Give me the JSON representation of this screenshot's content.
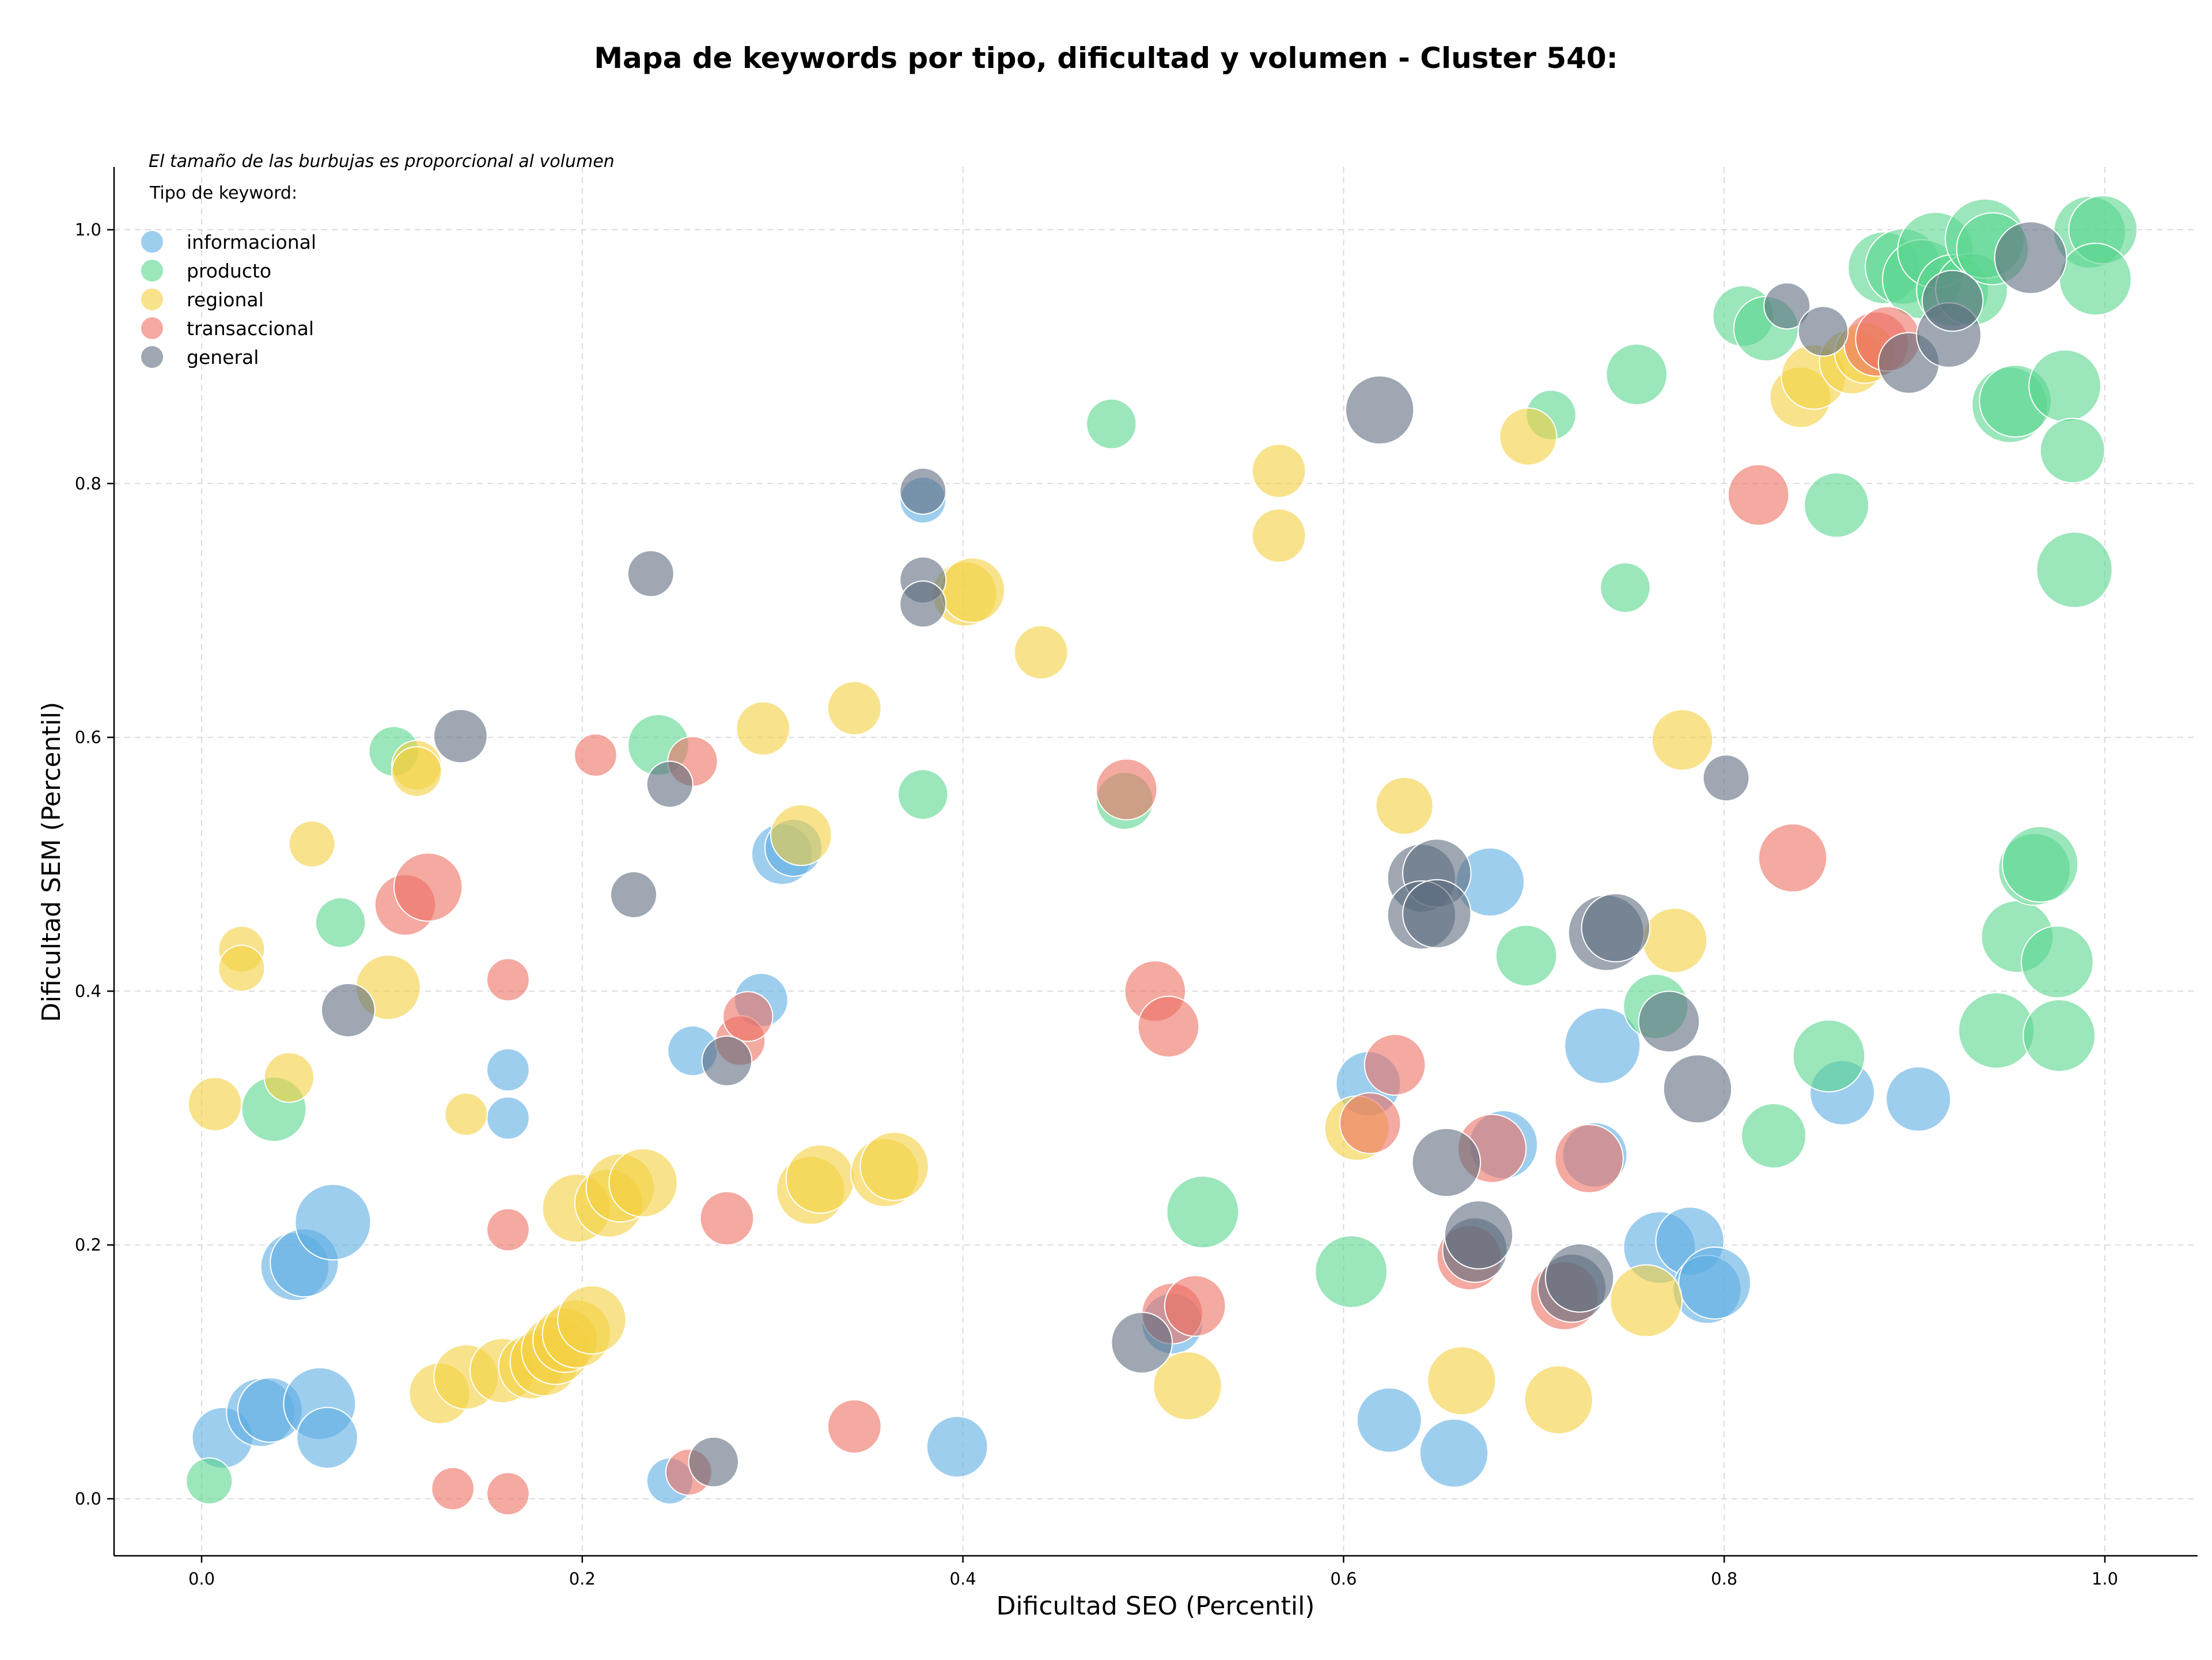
{
  "chart_data": {
    "type": "scatter",
    "title": "Mapa de keywords por tipo, dificultad y volumen - Cluster 540:",
    "xlabel": "Dificultad SEO (Percentil)",
    "ylabel": "Dificultad SEM (Percentil)",
    "xlim": [
      -0.045,
      1.05
    ],
    "ylim": [
      -0.045,
      1.05
    ],
    "x_ticks": [
      "0.0",
      "0.2",
      "0.4",
      "0.6",
      "0.8",
      "1.0"
    ],
    "y_ticks": [
      "0.0",
      "0.2",
      "0.4",
      "0.6",
      "0.8",
      "1.0"
    ],
    "grid": true,
    "note": "El tamaño de las burbujas es proporcional al volumen",
    "legend_title": "Tipo de keyword:",
    "legend_position": "top-left",
    "series": [
      {
        "name": "informacional",
        "color": "#5DADE2",
        "points": [
          [
            0.011,
            0.048,
            0.45
          ],
          [
            0.031,
            0.068,
            0.55
          ],
          [
            0.036,
            0.07,
            0.5
          ],
          [
            0.062,
            0.075,
            0.6
          ],
          [
            0.066,
            0.048,
            0.45
          ],
          [
            0.049,
            0.183,
            0.55
          ],
          [
            0.054,
            0.186,
            0.55
          ],
          [
            0.069,
            0.218,
            0.65
          ],
          [
            0.161,
            0.338,
            0.2
          ],
          [
            0.161,
            0.3,
            0.2
          ],
          [
            0.246,
            0.014,
            0.25
          ],
          [
            0.258,
            0.353,
            0.3
          ],
          [
            0.294,
            0.393,
            0.35
          ],
          [
            0.305,
            0.508,
            0.45
          ],
          [
            0.311,
            0.513,
            0.4
          ],
          [
            0.379,
            0.787,
            0.25
          ],
          [
            0.397,
            0.041,
            0.45
          ],
          [
            0.613,
            0.327,
            0.5
          ],
          [
            0.624,
            0.062,
            0.5
          ],
          [
            0.658,
            0.036,
            0.55
          ],
          [
            0.677,
            0.486,
            0.55
          ],
          [
            0.684,
            0.279,
            0.55
          ],
          [
            0.732,
            0.271,
            0.5
          ],
          [
            0.736,
            0.357,
            0.65
          ],
          [
            0.766,
            0.198,
            0.6
          ],
          [
            0.782,
            0.203,
            0.55
          ],
          [
            0.791,
            0.165,
            0.55
          ],
          [
            0.795,
            0.17,
            0.6
          ],
          [
            0.862,
            0.32,
            0.5
          ],
          [
            0.902,
            0.315,
            0.5
          ],
          [
            0.51,
            0.138,
            0.45
          ]
        ]
      },
      {
        "name": "producto",
        "color": "#58D68D",
        "points": [
          [
            0.004,
            0.014,
            0.25
          ],
          [
            0.038,
            0.307,
            0.5
          ],
          [
            0.073,
            0.454,
            0.3
          ],
          [
            0.101,
            0.589,
            0.3
          ],
          [
            0.24,
            0.594,
            0.45
          ],
          [
            0.379,
            0.555,
            0.3
          ],
          [
            0.478,
            0.847,
            0.3
          ],
          [
            0.485,
            0.55,
            0.4
          ],
          [
            0.526,
            0.226,
            0.6
          ],
          [
            0.604,
            0.179,
            0.6
          ],
          [
            0.696,
            0.428,
            0.45
          ],
          [
            0.709,
            0.854,
            0.3
          ],
          [
            0.748,
            0.718,
            0.3
          ],
          [
            0.754,
            0.886,
            0.45
          ],
          [
            0.764,
            0.388,
            0.5
          ],
          [
            0.81,
            0.932,
            0.45
          ],
          [
            0.822,
            0.922,
            0.5
          ],
          [
            0.826,
            0.286,
            0.5
          ],
          [
            0.855,
            0.349,
            0.6
          ],
          [
            0.859,
            0.783,
            0.5
          ],
          [
            0.884,
            0.97,
            0.6
          ],
          [
            0.894,
            0.971,
            0.65
          ],
          [
            0.904,
            0.961,
            0.7
          ],
          [
            0.911,
            0.984,
            0.65
          ],
          [
            0.92,
            0.952,
            0.6
          ],
          [
            0.93,
            0.953,
            0.6
          ],
          [
            0.937,
            0.993,
            0.7
          ],
          [
            0.941,
            0.985,
            0.6
          ],
          [
            0.943,
            0.369,
            0.65
          ],
          [
            0.95,
            0.862,
            0.65
          ],
          [
            0.953,
            0.865,
            0.6
          ],
          [
            0.954,
            0.443,
            0.6
          ],
          [
            0.963,
            0.496,
            0.6
          ],
          [
            0.966,
            0.5,
            0.65
          ],
          [
            0.975,
            0.423,
            0.6
          ],
          [
            0.976,
            0.365,
            0.6
          ],
          [
            0.979,
            0.877,
            0.6
          ],
          [
            0.983,
            0.826,
            0.5
          ],
          [
            0.984,
            0.732,
            0.65
          ],
          [
            0.992,
            0.998,
            0.6
          ],
          [
            0.999,
            1.0,
            0.55
          ],
          [
            0.995,
            0.961,
            0.6
          ]
        ]
      },
      {
        "name": "regional",
        "color": "#F4D03F",
        "points": [
          [
            0.007,
            0.311,
            0.35
          ],
          [
            0.021,
            0.433,
            0.25
          ],
          [
            0.021,
            0.418,
            0.25
          ],
          [
            0.046,
            0.332,
            0.3
          ],
          [
            0.058,
            0.516,
            0.25
          ],
          [
            0.098,
            0.403,
            0.5
          ],
          [
            0.113,
            0.578,
            0.3
          ],
          [
            0.113,
            0.573,
            0.3
          ],
          [
            0.125,
            0.083,
            0.45
          ],
          [
            0.139,
            0.096,
            0.5
          ],
          [
            0.139,
            0.303,
            0.2
          ],
          [
            0.158,
            0.101,
            0.5
          ],
          [
            0.173,
            0.104,
            0.5
          ],
          [
            0.18,
            0.108,
            0.55
          ],
          [
            0.186,
            0.117,
            0.55
          ],
          [
            0.191,
            0.125,
            0.5
          ],
          [
            0.197,
            0.13,
            0.55
          ],
          [
            0.205,
            0.141,
            0.55
          ],
          [
            0.197,
            0.229,
            0.55
          ],
          [
            0.214,
            0.233,
            0.55
          ],
          [
            0.22,
            0.245,
            0.55
          ],
          [
            0.232,
            0.249,
            0.55
          ],
          [
            0.295,
            0.607,
            0.35
          ],
          [
            0.315,
            0.523,
            0.45
          ],
          [
            0.32,
            0.243,
            0.55
          ],
          [
            0.325,
            0.252,
            0.55
          ],
          [
            0.343,
            0.623,
            0.35
          ],
          [
            0.359,
            0.257,
            0.55
          ],
          [
            0.364,
            0.262,
            0.55
          ],
          [
            0.401,
            0.713,
            0.5
          ],
          [
            0.405,
            0.716,
            0.5
          ],
          [
            0.441,
            0.667,
            0.35
          ],
          [
            0.518,
            0.089,
            0.55
          ],
          [
            0.566,
            0.81,
            0.35
          ],
          [
            0.566,
            0.759,
            0.35
          ],
          [
            0.607,
            0.292,
            0.5
          ],
          [
            0.632,
            0.546,
            0.4
          ],
          [
            0.662,
            0.093,
            0.55
          ],
          [
            0.697,
            0.837,
            0.4
          ],
          [
            0.713,
            0.078,
            0.55
          ],
          [
            0.759,
            0.156,
            0.6
          ],
          [
            0.774,
            0.44,
            0.5
          ],
          [
            0.778,
            0.598,
            0.45
          ],
          [
            0.84,
            0.868,
            0.45
          ],
          [
            0.847,
            0.884,
            0.5
          ],
          [
            0.867,
            0.896,
            0.5
          ],
          [
            0.874,
            0.903,
            0.45
          ]
        ]
      },
      {
        "name": "transaccional",
        "color": "#EC7063",
        "points": [
          [
            0.107,
            0.468,
            0.45
          ],
          [
            0.119,
            0.482,
            0.55
          ],
          [
            0.132,
            0.008,
            0.2
          ],
          [
            0.161,
            0.409,
            0.2
          ],
          [
            0.161,
            0.004,
            0.2
          ],
          [
            0.161,
            0.212,
            0.2
          ],
          [
            0.207,
            0.586,
            0.2
          ],
          [
            0.256,
            0.021,
            0.25
          ],
          [
            0.258,
            0.581,
            0.3
          ],
          [
            0.276,
            0.221,
            0.35
          ],
          [
            0.283,
            0.361,
            0.3
          ],
          [
            0.287,
            0.38,
            0.3
          ],
          [
            0.343,
            0.057,
            0.35
          ],
          [
            0.486,
            0.559,
            0.45
          ],
          [
            0.501,
            0.4,
            0.45
          ],
          [
            0.508,
            0.372,
            0.45
          ],
          [
            0.51,
            0.146,
            0.45
          ],
          [
            0.522,
            0.152,
            0.45
          ],
          [
            0.614,
            0.296,
            0.45
          ],
          [
            0.627,
            0.342,
            0.45
          ],
          [
            0.666,
            0.19,
            0.5
          ],
          [
            0.678,
            0.276,
            0.55
          ],
          [
            0.716,
            0.16,
            0.55
          ],
          [
            0.729,
            0.268,
            0.55
          ],
          [
            0.818,
            0.791,
            0.45
          ],
          [
            0.836,
            0.505,
            0.55
          ],
          [
            0.88,
            0.91,
            0.5
          ],
          [
            0.886,
            0.914,
            0.5
          ]
        ]
      },
      {
        "name": "general",
        "color": "#5D6D7E",
        "points": [
          [
            0.077,
            0.385,
            0.35
          ],
          [
            0.136,
            0.601,
            0.35
          ],
          [
            0.227,
            0.476,
            0.25
          ],
          [
            0.236,
            0.729,
            0.25
          ],
          [
            0.246,
            0.563,
            0.25
          ],
          [
            0.269,
            0.029,
            0.3
          ],
          [
            0.276,
            0.345,
            0.3
          ],
          [
            0.379,
            0.794,
            0.25
          ],
          [
            0.379,
            0.724,
            0.25
          ],
          [
            0.379,
            0.705,
            0.25
          ],
          [
            0.494,
            0.123,
            0.45
          ],
          [
            0.619,
            0.858,
            0.55
          ],
          [
            0.641,
            0.489,
            0.55
          ],
          [
            0.649,
            0.493,
            0.55
          ],
          [
            0.641,
            0.46,
            0.55
          ],
          [
            0.649,
            0.461,
            0.55
          ],
          [
            0.654,
            0.265,
            0.55
          ],
          [
            0.669,
            0.196,
            0.5
          ],
          [
            0.671,
            0.208,
            0.55
          ],
          [
            0.72,
            0.166,
            0.55
          ],
          [
            0.724,
            0.174,
            0.55
          ],
          [
            0.738,
            0.446,
            0.65
          ],
          [
            0.743,
            0.45,
            0.55
          ],
          [
            0.771,
            0.376,
            0.45
          ],
          [
            0.786,
            0.323,
            0.55
          ],
          [
            0.801,
            0.568,
            0.25
          ],
          [
            0.833,
            0.94,
            0.25
          ],
          [
            0.852,
            0.92,
            0.3
          ],
          [
            0.897,
            0.895,
            0.45
          ],
          [
            0.918,
            0.917,
            0.5
          ],
          [
            0.92,
            0.944,
            0.45
          ],
          [
            0.961,
            0.978,
            0.6
          ]
        ]
      }
    ]
  }
}
